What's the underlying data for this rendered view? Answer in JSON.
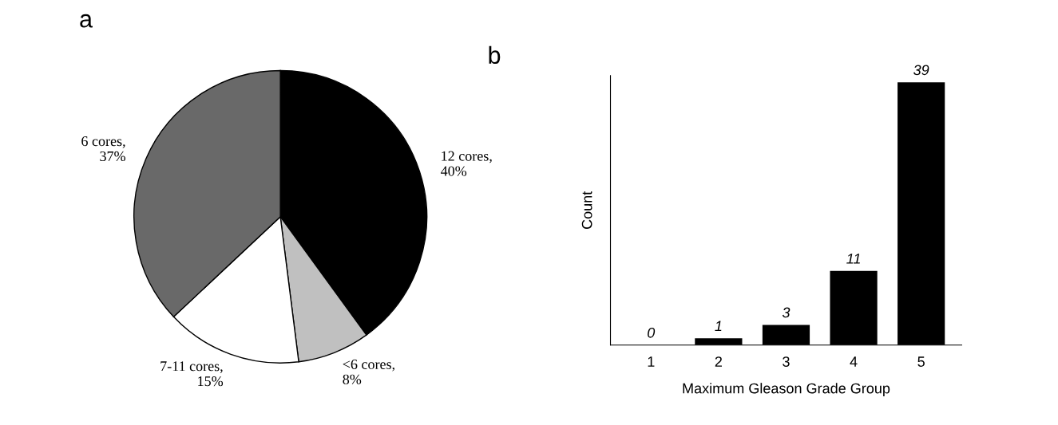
{
  "chart_data": [
    {
      "type": "pie",
      "title": "a",
      "categories": [
        "12 cores,\n40%",
        "<6 cores,\n8%",
        "7-11 cores,\n15%",
        "6 cores,\n37%"
      ],
      "values": [
        40,
        8,
        15,
        37
      ],
      "colors": [
        "#000000",
        "#c0c0c0",
        "#ffffff",
        "#696969"
      ]
    },
    {
      "type": "bar",
      "title": "b",
      "xlabel": "Maximum Gleason Grade Group",
      "ylabel": "Count",
      "categories": [
        "1",
        "2",
        "3",
        "4",
        "5"
      ],
      "values": [
        0,
        1,
        3,
        11,
        39
      ],
      "color": "#000000",
      "ylim": [
        0,
        40
      ],
      "data_labels": true,
      "tick_labels": "x",
      "grid": false,
      "legend": false
    }
  ]
}
